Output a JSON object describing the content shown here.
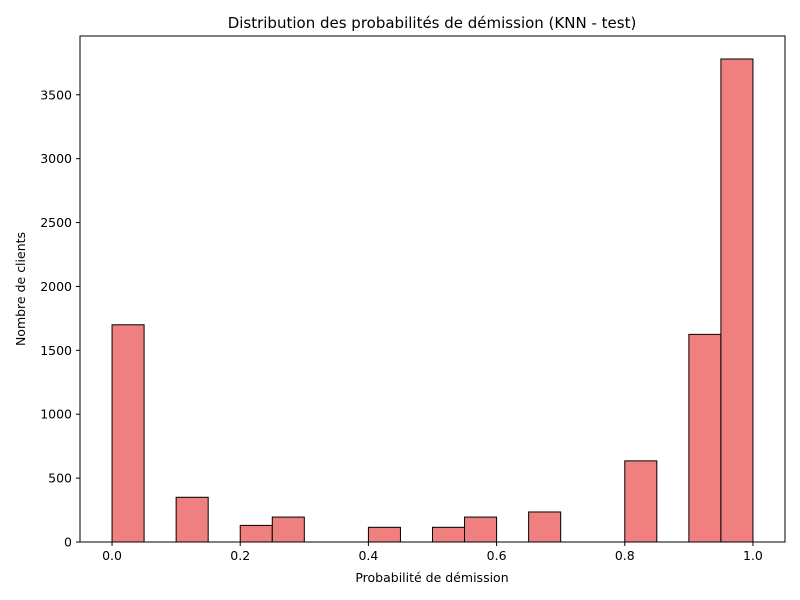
{
  "chart_data": {
    "type": "bar",
    "title": "Distribution des probabilités de démission (KNN - test)",
    "xlabel": "Probabilité de démission",
    "ylabel": "Nombre de clients",
    "xlim": [
      -0.05,
      1.05
    ],
    "ylim": [
      0,
      3960
    ],
    "xticks": [
      "0.0",
      "0.2",
      "0.4",
      "0.6",
      "0.8",
      "1.0"
    ],
    "yticks": [
      "0",
      "500",
      "1000",
      "1500",
      "2000",
      "2500",
      "3000",
      "3500"
    ],
    "bin_width": 0.05,
    "bins": [
      {
        "start": 0.0,
        "value": 1700
      },
      {
        "start": 0.05,
        "value": 0
      },
      {
        "start": 0.1,
        "value": 350
      },
      {
        "start": 0.15,
        "value": 0
      },
      {
        "start": 0.2,
        "value": 130
      },
      {
        "start": 0.25,
        "value": 195
      },
      {
        "start": 0.3,
        "value": 0
      },
      {
        "start": 0.35,
        "value": 0
      },
      {
        "start": 0.4,
        "value": 115
      },
      {
        "start": 0.45,
        "value": 0
      },
      {
        "start": 0.5,
        "value": 115
      },
      {
        "start": 0.55,
        "value": 195
      },
      {
        "start": 0.6,
        "value": 0
      },
      {
        "start": 0.65,
        "value": 235
      },
      {
        "start": 0.7,
        "value": 0
      },
      {
        "start": 0.75,
        "value": 0
      },
      {
        "start": 0.8,
        "value": 635
      },
      {
        "start": 0.85,
        "value": 0
      },
      {
        "start": 0.9,
        "value": 1625
      },
      {
        "start": 0.95,
        "value": 3780
      }
    ],
    "bar_color": "#f08080",
    "edge_color": "#000000",
    "grid": false,
    "legend": "none"
  }
}
